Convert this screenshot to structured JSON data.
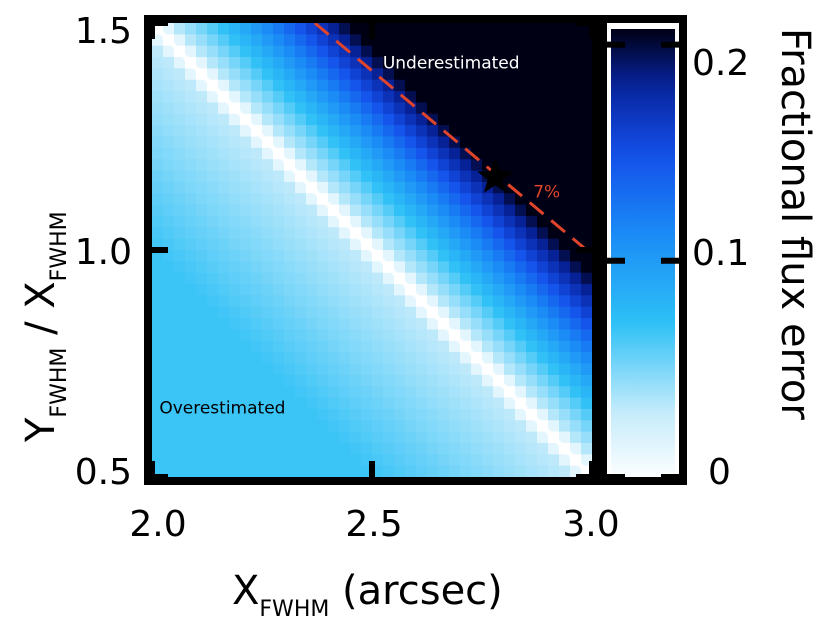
{
  "chart_data": {
    "type": "heatmap",
    "xlabel": {
      "main": "X",
      "sub": "FWHM",
      "suffix": " (arcsec)"
    },
    "ylabel": {
      "main": "Y",
      "sub": "FWHM",
      "sep": " / ",
      "main2": "X",
      "sub2": "FWHM"
    },
    "xlim": [
      2.0,
      3.0
    ],
    "ylim": [
      0.5,
      1.5
    ],
    "x_ticks": [
      {
        "value": 2.0,
        "label": "2.0"
      },
      {
        "value": 2.5,
        "label": "2.5"
      },
      {
        "value": 3.0,
        "label": "3.0"
      }
    ],
    "y_ticks": [
      {
        "value": 0.5,
        "label": "0.5"
      },
      {
        "value": 1.0,
        "label": "1.0"
      },
      {
        "value": 1.5,
        "label": "1.5"
      }
    ],
    "colorbar": {
      "label": "Fractional flux error",
      "range": [
        0,
        0.21
      ],
      "ticks": [
        {
          "value": 0,
          "label": "0"
        },
        {
          "value": 0.1,
          "label": "0.1"
        },
        {
          "value": 0.2,
          "label": "0.2"
        }
      ],
      "colors": [
        "#ffffff",
        "#c6ecfb",
        "#2ec0f6",
        "#1a8af6",
        "#1450ea",
        "#07229a",
        "#000015"
      ]
    },
    "zero_error_line": {
      "x_start": 2.0,
      "y_start": 1.5,
      "x_end": 3.0,
      "y_end": 0.5
    },
    "contour_7pct": {
      "label": "7%",
      "x_start": 2.37,
      "y_start": 1.5,
      "x_end": 3.0,
      "y_end": 0.99,
      "color": "#e0442a"
    },
    "marker": {
      "x": 2.78,
      "y": 1.16,
      "symbol": "star"
    },
    "annotations": [
      {
        "text": "Underestimated",
        "x": 2.68,
        "y": 1.4,
        "color": "#ffffff"
      },
      {
        "text": "Overestimated",
        "x": 2.16,
        "y": 0.64,
        "color": "#000000"
      }
    ],
    "grid": false
  }
}
